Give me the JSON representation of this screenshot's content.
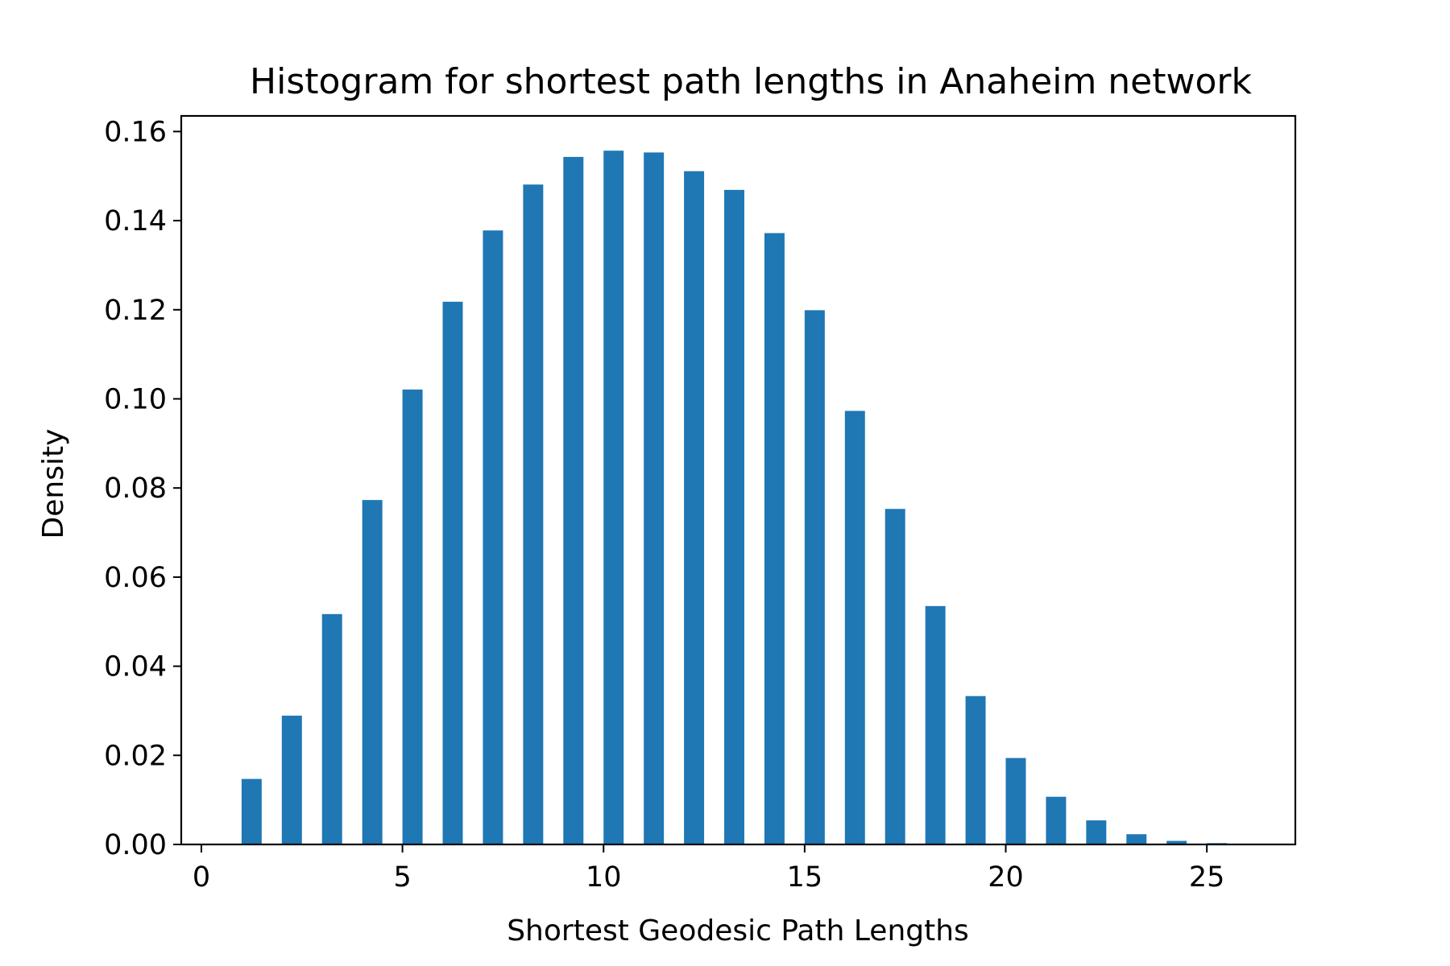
{
  "chart_data": {
    "type": "bar",
    "title": "Histogram for shortest path lengths in Anaheim network",
    "xlabel": "Shortest Geodesic Path Lengths",
    "ylabel": "Density",
    "xlim": [
      -0.5,
      27.2
    ],
    "ylim": [
      0,
      0.1635
    ],
    "xticks": [
      0,
      5,
      10,
      15,
      20,
      25
    ],
    "xtick_labels": [
      "0",
      "5",
      "10",
      "15",
      "20",
      "25"
    ],
    "yticks": [
      0,
      0.02,
      0.04,
      0.06,
      0.08,
      0.1,
      0.12,
      0.14,
      0.16
    ],
    "ytick_labels": [
      "0.00",
      "0.02",
      "0.04",
      "0.06",
      "0.08",
      "0.10",
      "0.12",
      "0.14",
      "0.16"
    ],
    "bar_width": 0.5,
    "color": "#1f77b4",
    "grid": false,
    "x": [
      1,
      2,
      3,
      4,
      5,
      6,
      7,
      8,
      9,
      10,
      11,
      12,
      13,
      14,
      15,
      16,
      17,
      18,
      19,
      20,
      21,
      22,
      23,
      24,
      25
    ],
    "values": [
      0.0147,
      0.0289,
      0.0517,
      0.0773,
      0.1021,
      0.1218,
      0.1378,
      0.1481,
      0.1543,
      0.1557,
      0.1553,
      0.1511,
      0.1469,
      0.1372,
      0.1199,
      0.0973,
      0.0753,
      0.0535,
      0.0333,
      0.0194,
      0.0107,
      0.0054,
      0.0023,
      0.0008,
      0.0003
    ]
  }
}
